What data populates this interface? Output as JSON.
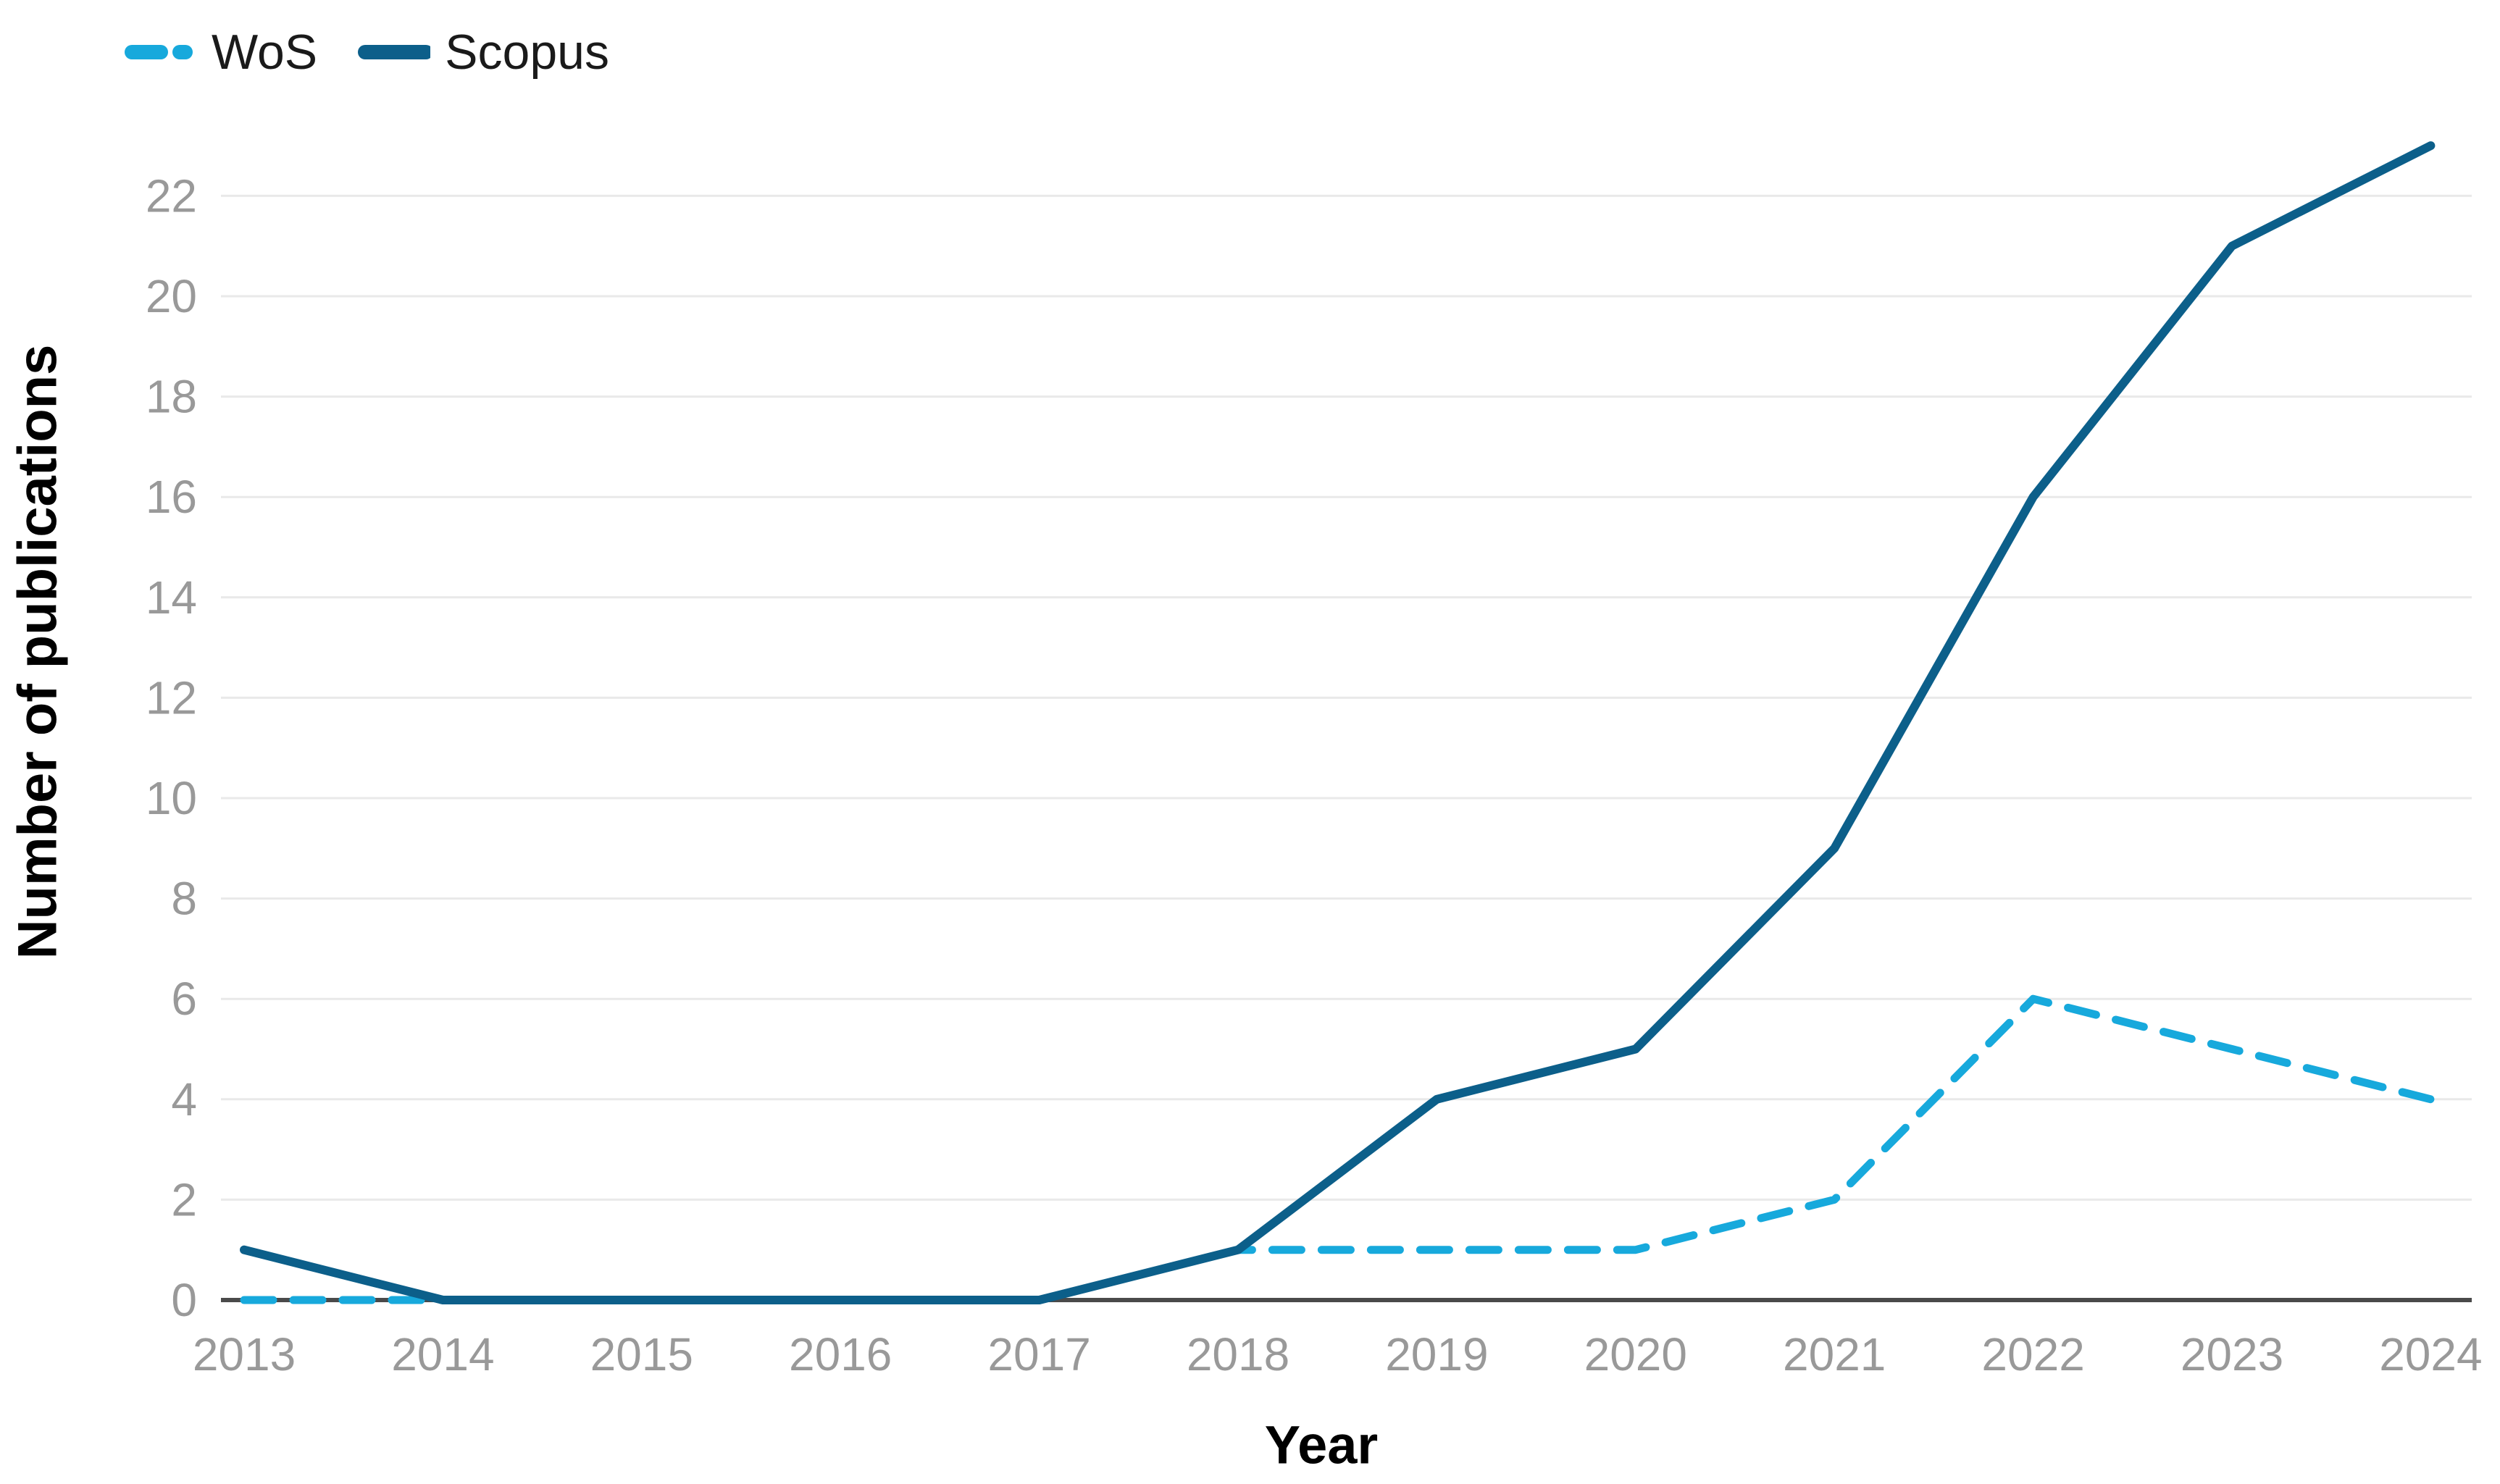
{
  "colors": {
    "wos": "#17a9dc",
    "scopus": "#0c5f8a",
    "grid": "#e9e9e9",
    "axis": "#4a4a4a",
    "tick_text": "#999999",
    "legend_text": "#1a1a1a",
    "title_text": "#000000",
    "background": "#ffffff"
  },
  "chart_data": {
    "type": "line",
    "title": "",
    "x": [
      "2013",
      "2014",
      "2015",
      "2016",
      "2017",
      "2018",
      "2019",
      "2020",
      "2021",
      "2022",
      "2023",
      "2024"
    ],
    "series": [
      {
        "name": "WoS",
        "style": "dashed",
        "color_key": "wos",
        "values": [
          0,
          0,
          0,
          0,
          0,
          1,
          1,
          1,
          2,
          6,
          5,
          4
        ]
      },
      {
        "name": "Scopus",
        "style": "solid",
        "color_key": "scopus",
        "values": [
          1,
          0,
          0,
          0,
          0,
          1,
          4,
          5,
          9,
          16,
          21,
          23
        ]
      }
    ],
    "xlabel": "Year",
    "ylabel": "Number of publications",
    "ylim": [
      0,
      23
    ],
    "yticks": [
      0,
      2,
      4,
      6,
      8,
      10,
      12,
      14,
      16,
      18,
      20,
      22
    ],
    "grid": true,
    "legend_position": "top-left"
  }
}
